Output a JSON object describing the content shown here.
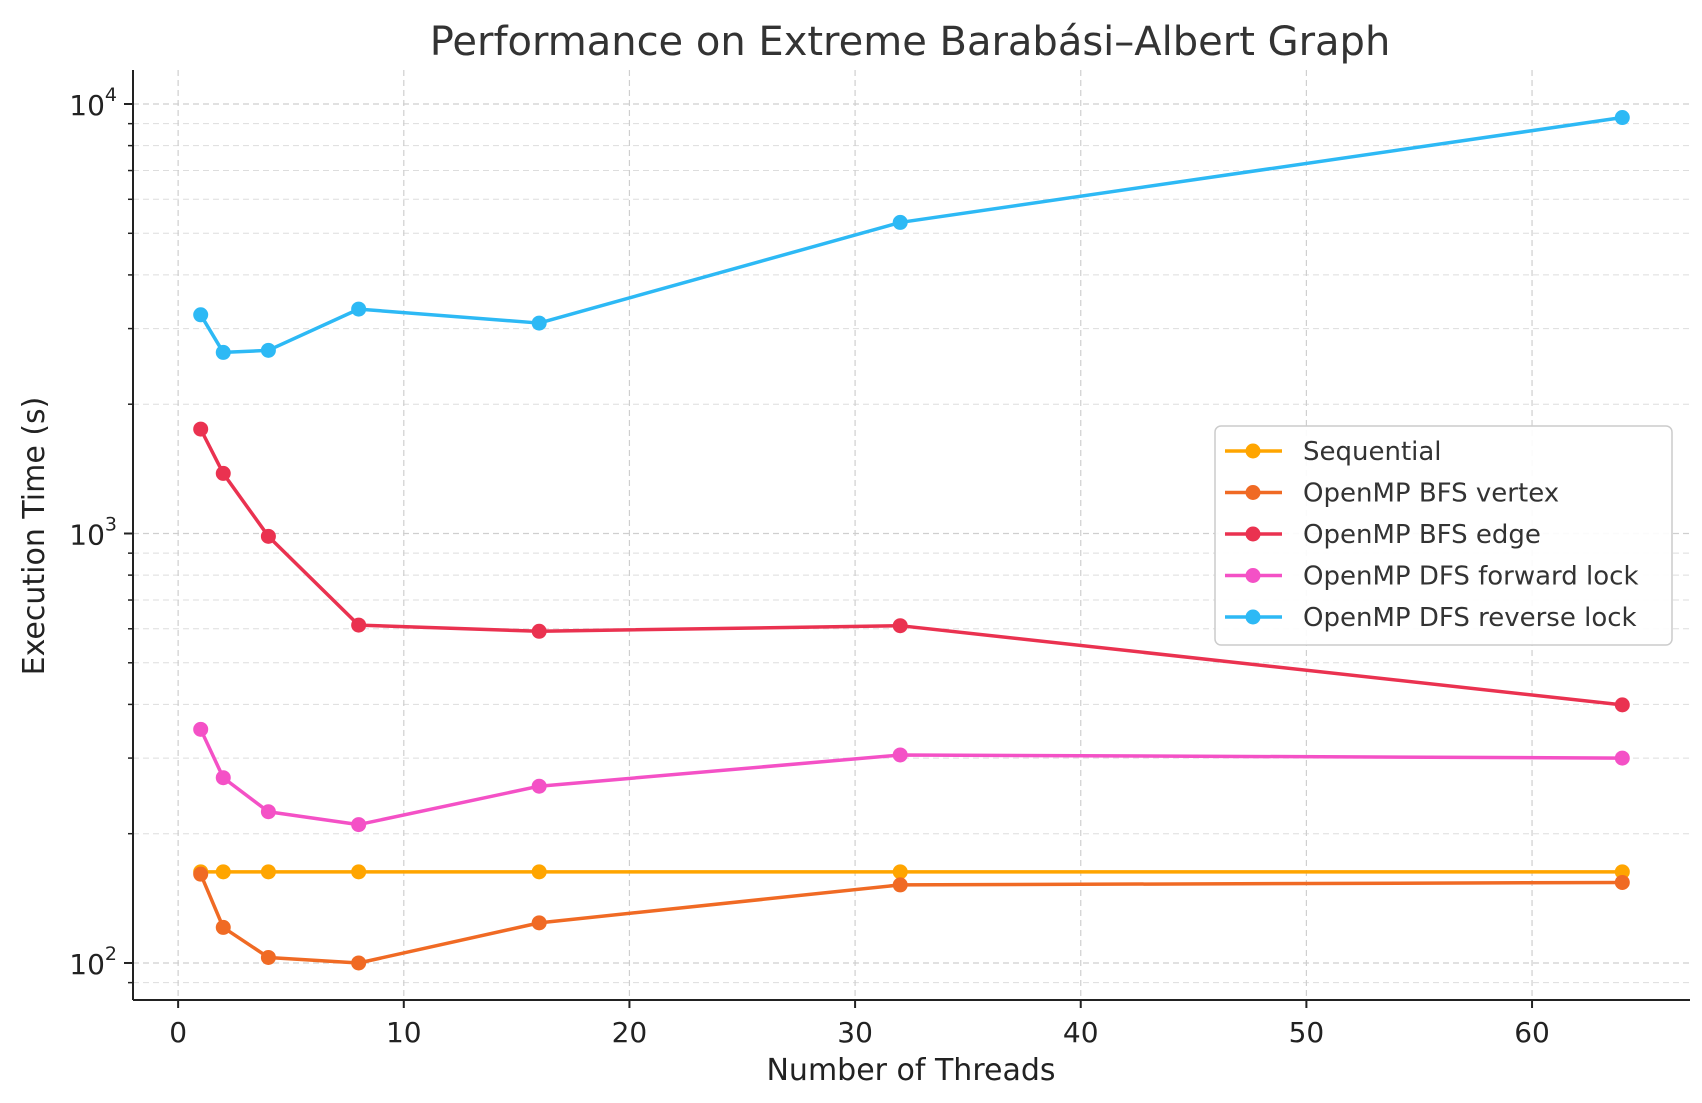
{
  "chart_data": {
    "type": "line",
    "title": "Performance on Extreme Barabási–Albert Graph",
    "xlabel": "Number of Threads",
    "ylabel": "Execution Time (s)",
    "x": [
      1,
      2,
      4,
      8,
      16,
      32,
      64
    ],
    "xlim": [
      -2,
      67
    ],
    "ylim": [
      82,
      12000
    ],
    "yscale": "log",
    "x_ticks": [
      0,
      10,
      20,
      30,
      40,
      50,
      60
    ],
    "y_ticks": [
      {
        "base": "10",
        "exp": "2",
        "value": 100
      },
      {
        "base": "10",
        "exp": "3",
        "value": 1000
      },
      {
        "base": "10",
        "exp": "4",
        "value": 10000
      }
    ],
    "grid": true,
    "legend_position": "center-right",
    "series": [
      {
        "name": "Sequential",
        "color": "#FFA500",
        "values": [
          163,
          163,
          163,
          163,
          163,
          163,
          163
        ]
      },
      {
        "name": "OpenMP BFS vertex",
        "color": "#F06A24",
        "values": [
          161,
          121,
          103,
          100,
          124,
          152,
          154
        ]
      },
      {
        "name": "OpenMP BFS edge",
        "color": "#EA3250",
        "values": [
          1750,
          1380,
          985,
          612,
          592,
          610,
          399
        ]
      },
      {
        "name": "OpenMP DFS forward lock",
        "color": "#F451C6",
        "values": [
          350,
          270,
          225,
          210,
          258,
          305,
          300
        ]
      },
      {
        "name": "OpenMP DFS reverse lock",
        "color": "#2DB9F5",
        "values": [
          3230,
          2640,
          2670,
          3330,
          3090,
          5300,
          9300
        ]
      }
    ]
  }
}
